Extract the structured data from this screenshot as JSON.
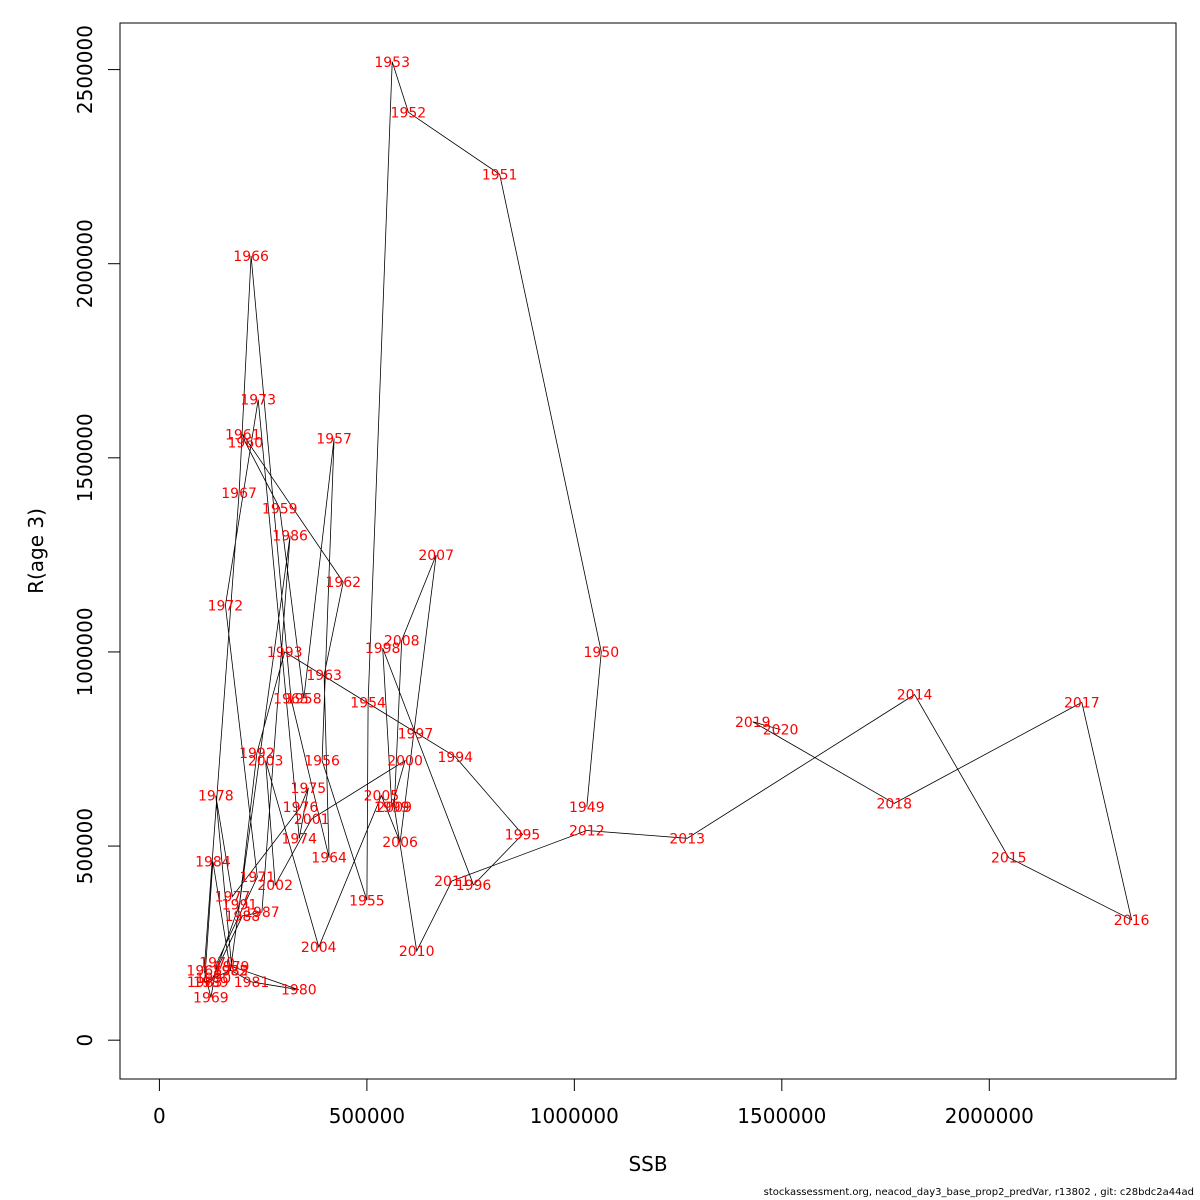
{
  "footer_text": "stockassessment.org, neacod_day3_base_prop2_predVar, r13802 , git: c28bdc2a44ad",
  "chart_data": {
    "type": "scatter",
    "connected": true,
    "xlabel": "SSB",
    "ylabel": "R(age 3)",
    "xlim": [
      -95000,
      2450000
    ],
    "ylim": [
      -100000,
      2620000
    ],
    "x_ticks": [
      0,
      500000,
      1000000,
      1500000,
      2000000
    ],
    "y_ticks": [
      0,
      500000,
      1000000,
      1500000,
      2000000,
      2500000
    ],
    "x_tick_labels": [
      "0",
      "500000",
      "1000000",
      "1500000",
      "2000000"
    ],
    "y_tick_labels": [
      "0",
      "500000",
      "1000000",
      "1500000",
      "2500000"
    ],
    "y_tick_labels_full": [
      "0",
      "500000",
      "1000000",
      "1500000",
      "2000000",
      "2500000"
    ],
    "line_color": "#000000",
    "label_color": "#ff0000",
    "grid": false,
    "points": [
      {
        "year": "1949",
        "x": 1030000,
        "y": 600000
      },
      {
        "year": "1950",
        "x": 1065000,
        "y": 1000000
      },
      {
        "year": "1951",
        "x": 820000,
        "y": 2230000
      },
      {
        "year": "1952",
        "x": 600000,
        "y": 2390000
      },
      {
        "year": "1953",
        "x": 561000,
        "y": 2520000
      },
      {
        "year": "1954",
        "x": 503000,
        "y": 870000
      },
      {
        "year": "1955",
        "x": 500000,
        "y": 360000
      },
      {
        "year": "1956",
        "x": 392000,
        "y": 720000
      },
      {
        "year": "1957",
        "x": 421000,
        "y": 1550000
      },
      {
        "year": "1958",
        "x": 348000,
        "y": 880000
      },
      {
        "year": "1959",
        "x": 290000,
        "y": 1370000
      },
      {
        "year": "1960",
        "x": 207000,
        "y": 1540000
      },
      {
        "year": "1961",
        "x": 201000,
        "y": 1560000
      },
      {
        "year": "1962",
        "x": 443000,
        "y": 1180000
      },
      {
        "year": "1963",
        "x": 397000,
        "y": 940000
      },
      {
        "year": "1964",
        "x": 409000,
        "y": 470000
      },
      {
        "year": "1965",
        "x": 317000,
        "y": 880000
      },
      {
        "year": "1966",
        "x": 221000,
        "y": 2020000
      },
      {
        "year": "1967",
        "x": 192000,
        "y": 1410000
      },
      {
        "year": "1968",
        "x": 108000,
        "y": 180000
      },
      {
        "year": "1969",
        "x": 124000,
        "y": 110000
      },
      {
        "year": "1970",
        "x": 139000,
        "y": 200000
      },
      {
        "year": "1971",
        "x": 236000,
        "y": 420000
      },
      {
        "year": "1972",
        "x": 159000,
        "y": 1120000
      },
      {
        "year": "1973",
        "x": 238000,
        "y": 1650000
      },
      {
        "year": "1974",
        "x": 337000,
        "y": 520000
      },
      {
        "year": "1975",
        "x": 359000,
        "y": 650000
      },
      {
        "year": "1976",
        "x": 340000,
        "y": 600000
      },
      {
        "year": "1977",
        "x": 176000,
        "y": 370000
      },
      {
        "year": "1978",
        "x": 136000,
        "y": 630000
      },
      {
        "year": "1979",
        "x": 174000,
        "y": 190000
      },
      {
        "year": "1980",
        "x": 336000,
        "y": 130000
      },
      {
        "year": "1981",
        "x": 222000,
        "y": 150000
      },
      {
        "year": "1982",
        "x": 172000,
        "y": 180000
      },
      {
        "year": "1983",
        "x": 109000,
        "y": 150000
      },
      {
        "year": "1984",
        "x": 129000,
        "y": 460000
      },
      {
        "year": "1985",
        "x": 171000,
        "y": 180000
      },
      {
        "year": "1986",
        "x": 315000,
        "y": 1300000
      },
      {
        "year": "1987",
        "x": 247000,
        "y": 330000
      },
      {
        "year": "1988",
        "x": 200000,
        "y": 320000
      },
      {
        "year": "1989",
        "x": 124000,
        "y": 150000
      },
      {
        "year": "1990",
        "x": 130000,
        "y": 160000
      },
      {
        "year": "1991",
        "x": 193000,
        "y": 350000
      },
      {
        "year": "1992",
        "x": 235000,
        "y": 740000
      },
      {
        "year": "1993",
        "x": 302000,
        "y": 1000000
      },
      {
        "year": "1994",
        "x": 713000,
        "y": 730000
      },
      {
        "year": "1995",
        "x": 875000,
        "y": 530000
      },
      {
        "year": "1996",
        "x": 757000,
        "y": 400000
      },
      {
        "year": "1997",
        "x": 617000,
        "y": 790000
      },
      {
        "year": "1998",
        "x": 538000,
        "y": 1010000
      },
      {
        "year": "1999",
        "x": 560000,
        "y": 600000
      },
      {
        "year": "2000",
        "x": 592000,
        "y": 720000
      },
      {
        "year": "2001",
        "x": 367000,
        "y": 570000
      },
      {
        "year": "2002",
        "x": 279000,
        "y": 400000
      },
      {
        "year": "2003",
        "x": 256000,
        "y": 720000
      },
      {
        "year": "2004",
        "x": 384000,
        "y": 240000
      },
      {
        "year": "2005",
        "x": 535000,
        "y": 630000
      },
      {
        "year": "2006",
        "x": 580000,
        "y": 510000
      },
      {
        "year": "2007",
        "x": 667000,
        "y": 1250000
      },
      {
        "year": "2008",
        "x": 584000,
        "y": 1030000
      },
      {
        "year": "2009",
        "x": 566000,
        "y": 600000
      },
      {
        "year": "2010",
        "x": 620000,
        "y": 230000
      },
      {
        "year": "2011",
        "x": 705000,
        "y": 410000
      },
      {
        "year": "2012",
        "x": 1030000,
        "y": 540000
      },
      {
        "year": "2013",
        "x": 1272000,
        "y": 520000
      },
      {
        "year": "2014",
        "x": 1820000,
        "y": 890000
      },
      {
        "year": "2015",
        "x": 2047000,
        "y": 470000
      },
      {
        "year": "2016",
        "x": 2343000,
        "y": 310000
      },
      {
        "year": "2017",
        "x": 2223000,
        "y": 870000
      },
      {
        "year": "2018",
        "x": 1771000,
        "y": 610000
      },
      {
        "year": "2019",
        "x": 1430000,
        "y": 820000
      },
      {
        "year": "2020",
        "x": 1497000,
        "y": 800000
      }
    ]
  }
}
